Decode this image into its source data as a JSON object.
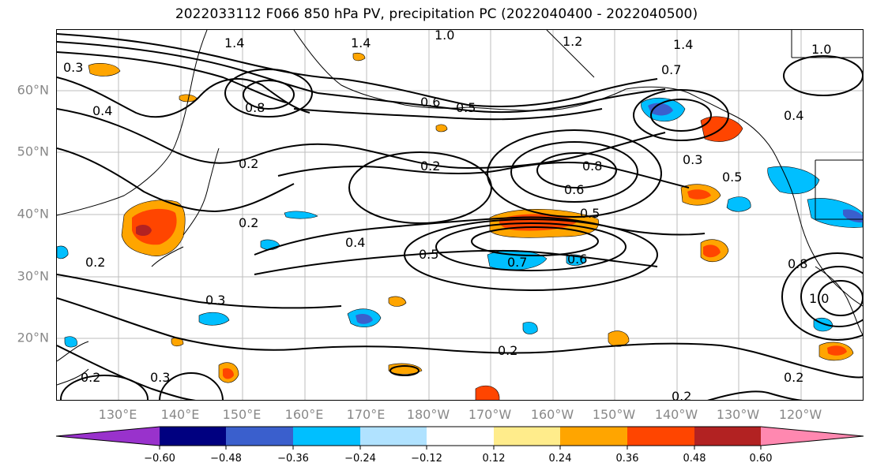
{
  "title": "2022033112 F066 850 hPa PV, precipitation PC (2022040400 - 2022040500)",
  "latitude_labels": [
    "60°N",
    "50°N",
    "40°N",
    "30°N",
    "20°N"
  ],
  "longitude_labels": [
    "130°E",
    "140°E",
    "150°E",
    "160°E",
    "170°E",
    "180°W",
    "170°W",
    "160°W",
    "150°W",
    "140°W",
    "130°W",
    "120°W"
  ],
  "contour_labels": [
    "1.4",
    "1.4",
    "1.0",
    "1.2",
    "1.4",
    "1.0",
    "0.3",
    "0.4",
    "0.8",
    "0.6",
    "0.5",
    "0.7",
    "0.2",
    "0.2",
    "0.2",
    "0.4",
    "0.5",
    "0.6",
    "0.7",
    "0.6",
    "0.5",
    "0.8",
    "0.3",
    "0.2",
    "0.3",
    "0.2",
    "0.3",
    "0.2",
    "0.5",
    "0.8",
    "1.0",
    "0.2",
    "0.2",
    "0.4"
  ],
  "colorbar": {
    "tick_labels": [
      "−0.60",
      "−0.48",
      "−0.36",
      "−0.24",
      "−0.12",
      "0.12",
      "0.24",
      "0.36",
      "0.48",
      "0.60"
    ],
    "colors": [
      "#9932CC",
      "#000080",
      "#3A5FCD",
      "#00BFFF",
      "#B0E2FF",
      "#FFFFFF",
      "#FFEC8B",
      "#FFA500",
      "#FF4500",
      "#B22222",
      "#FF88B0"
    ]
  },
  "fill_colors": {
    "neg_light": "#B0E2FF",
    "neg_mid": "#00BFFF",
    "neg_strong": "#3A5FCD",
    "neg_deep": "#000080",
    "pos_light": "#FFEC8B",
    "pos_mid": "#FFA500",
    "pos_strong": "#FF4500",
    "pos_deep": "#B22222"
  }
}
